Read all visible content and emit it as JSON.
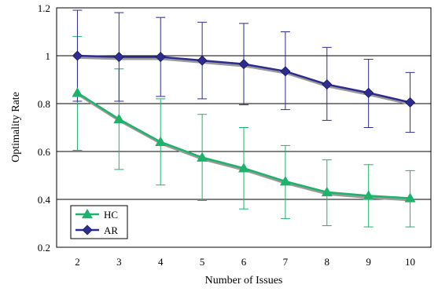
{
  "chart_data": {
    "type": "line",
    "title": "",
    "xlabel": "Number of Issues",
    "ylabel": "Optimality Rate",
    "x": [
      2,
      3,
      4,
      5,
      6,
      7,
      8,
      9,
      10
    ],
    "xlim": [
      1.5,
      10.5
    ],
    "ylim": [
      0.2,
      1.2
    ],
    "yticks": [
      "0.2",
      "0.4",
      "0.6",
      "0.8",
      "1",
      "1.2"
    ],
    "grid": true,
    "legend_position": "bottom-left",
    "series": [
      {
        "name": "HC",
        "marker": "triangle",
        "color": "#1db36a",
        "values": [
          0.845,
          0.735,
          0.64,
          0.575,
          0.53,
          0.475,
          0.43,
          0.415,
          0.405
        ],
        "err_low": [
          0.605,
          0.525,
          0.46,
          0.395,
          0.36,
          0.32,
          0.29,
          0.285,
          0.285
        ],
        "err_high": [
          1.08,
          0.945,
          0.82,
          0.755,
          0.7,
          0.625,
          0.565,
          0.545,
          0.52
        ]
      },
      {
        "name": "AR",
        "marker": "diamond",
        "color": "#2e2c8f",
        "values": [
          1.0,
          0.995,
          0.995,
          0.98,
          0.965,
          0.935,
          0.88,
          0.845,
          0.805
        ],
        "err_low": [
          0.81,
          0.81,
          0.83,
          0.82,
          0.795,
          0.775,
          0.73,
          0.7,
          0.68
        ],
        "err_high": [
          1.19,
          1.18,
          1.16,
          1.14,
          1.135,
          1.1,
          1.035,
          0.985,
          0.93
        ]
      }
    ]
  }
}
